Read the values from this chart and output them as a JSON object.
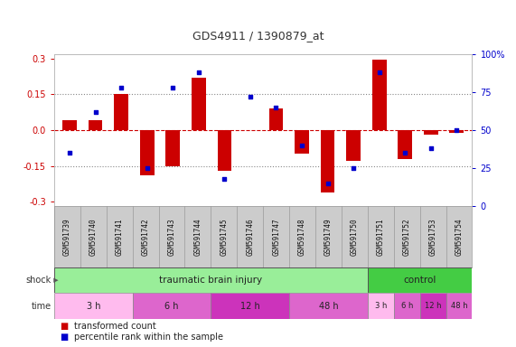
{
  "title": "GDS4911 / 1390879_at",
  "samples": [
    "GSM591739",
    "GSM591740",
    "GSM591741",
    "GSM591742",
    "GSM591743",
    "GSM591744",
    "GSM591745",
    "GSM591746",
    "GSM591747",
    "GSM591748",
    "GSM591749",
    "GSM591750",
    "GSM591751",
    "GSM591752",
    "GSM591753",
    "GSM591754"
  ],
  "bar_values": [
    0.04,
    0.04,
    0.15,
    -0.19,
    -0.15,
    0.22,
    -0.17,
    0.0,
    0.09,
    -0.1,
    -0.26,
    -0.13,
    0.295,
    -0.12,
    -0.02,
    -0.01
  ],
  "dot_values": [
    35,
    62,
    78,
    25,
    78,
    88,
    18,
    72,
    65,
    40,
    15,
    25,
    88,
    35,
    38,
    50
  ],
  "ylim": [
    -0.32,
    0.32
  ],
  "y2lim": [
    0,
    100
  ],
  "yticks": [
    -0.3,
    -0.15,
    0.0,
    0.15,
    0.3
  ],
  "y2ticks": [
    0,
    25,
    50,
    75,
    100
  ],
  "bar_color": "#cc0000",
  "dot_color": "#0000cc",
  "dotted_line_y": [
    0.15,
    -0.15
  ],
  "zero_line_color": "#cc0000",
  "shock_tbi_color": "#99ee99",
  "shock_ctrl_color": "#44cc44",
  "time_colors": [
    "#ffbbee",
    "#dd66cc",
    "#cc33bb",
    "#dd66cc"
  ],
  "legend_items": [
    {
      "label": "transformed count",
      "color": "#cc0000"
    },
    {
      "label": "percentile rank within the sample",
      "color": "#0000cc"
    }
  ],
  "shock_label": "shock",
  "time_label": "time",
  "bg_color": "#ffffff",
  "sample_bg": "#cccccc",
  "title_color": "#333333",
  "label_color": "#333333"
}
